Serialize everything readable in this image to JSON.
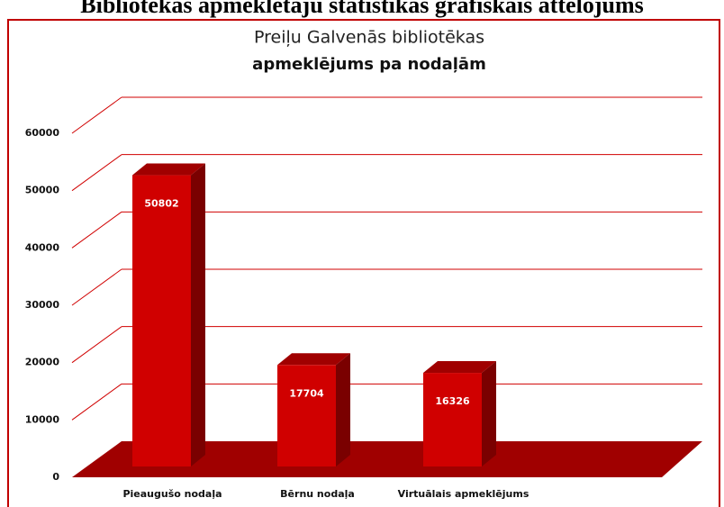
{
  "page_heading": "Bibliotēkas apmeklētāju statistikas grafiskais attēlojums",
  "chart_data": {
    "type": "bar3d",
    "title": "Preiļu Galvenās bibliotēkas",
    "subtitle": "apmeklējums pa nodaļām",
    "categories": [
      "Pieaugušo nodaļa",
      "Bērnu nodaļa",
      "Virtuālais apmeklējums"
    ],
    "values": [
      50802,
      17704,
      16326
    ],
    "color": "#d00000",
    "ylim": [
      0,
      60000
    ],
    "yticks": [
      0,
      10000,
      20000,
      30000,
      40000,
      50000,
      60000
    ],
    "grid": true
  }
}
